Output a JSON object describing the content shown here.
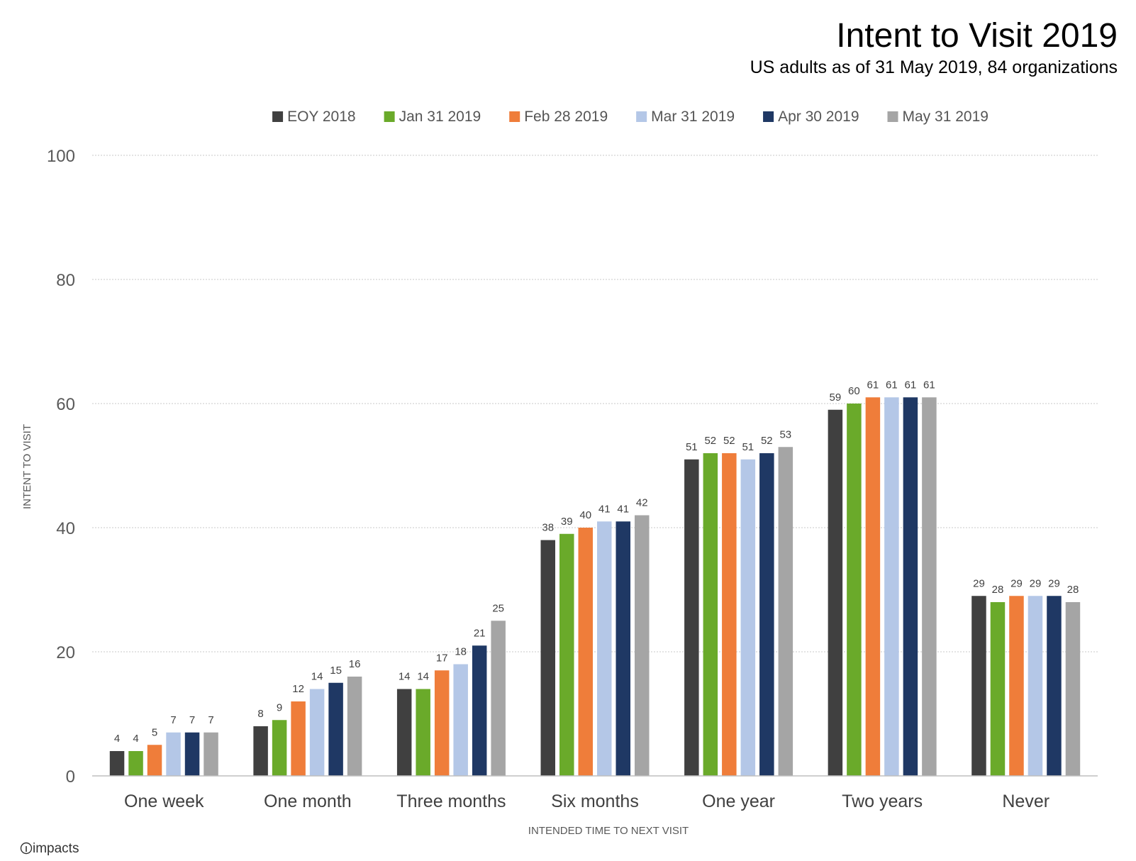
{
  "chart_data": {
    "type": "bar",
    "title": "Intent to Visit 2019",
    "subtitle": "US adults as of 31 May 2019, 84 organizations",
    "xlabel": "INTENDED TIME TO NEXT VISIT",
    "ylabel": "INTENT TO VISIT",
    "ylim": [
      0,
      100
    ],
    "yticks": [
      0,
      20,
      40,
      60,
      80,
      100
    ],
    "grid": true,
    "legend_position": "top",
    "categories": [
      "One week",
      "One month",
      "Three months",
      "Six months",
      "One year",
      "Two years",
      "Never"
    ],
    "series": [
      {
        "name": "EOY 2018",
        "color": "#404040",
        "values": [
          4,
          8,
          14,
          38,
          51,
          59,
          29
        ]
      },
      {
        "name": "Jan 31 2019",
        "color": "#6aaa2a",
        "values": [
          4,
          9,
          14,
          39,
          52,
          60,
          28
        ]
      },
      {
        "name": "Feb 28 2019",
        "color": "#ef7d3a",
        "values": [
          5,
          12,
          17,
          40,
          52,
          61,
          29
        ]
      },
      {
        "name": "Mar 31 2019",
        "color": "#b4c7e7",
        "values": [
          7,
          14,
          18,
          41,
          51,
          61,
          29
        ]
      },
      {
        "name": "Apr 30 2019",
        "color": "#1f3864",
        "values": [
          7,
          15,
          21,
          41,
          52,
          61,
          29
        ]
      },
      {
        "name": "May 31 2019",
        "color": "#a5a5a5",
        "values": [
          7,
          16,
          25,
          42,
          53,
          61,
          28
        ]
      }
    ]
  },
  "logo": {
    "text": "impacts"
  }
}
